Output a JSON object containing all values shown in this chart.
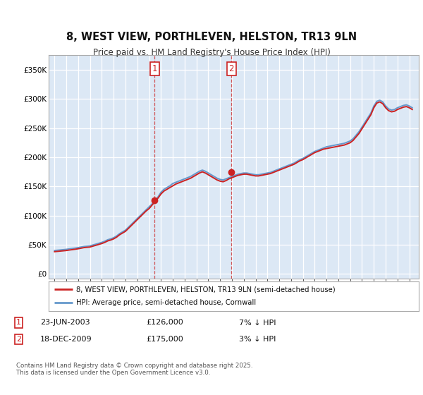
{
  "title": "8, WEST VIEW, PORTHLEVEN, HELSTON, TR13 9LN",
  "subtitle": "Price paid vs. HM Land Registry's House Price Index (HPI)",
  "background_color": "#ffffff",
  "plot_bg_color": "#dce8f5",
  "grid_color": "#ffffff",
  "hpi_color": "#6699cc",
  "price_color": "#cc2222",
  "marker1_date": 2003.47,
  "marker2_date": 2009.96,
  "marker1_price": 126000,
  "marker2_price": 175000,
  "marker1_label": "1",
  "marker2_label": "2",
  "marker1_date_str": "23-JUN-2003",
  "marker2_date_str": "18-DEC-2009",
  "marker1_pct": "7% ↓ HPI",
  "marker2_pct": "3% ↓ HPI",
  "legend1_label": "8, WEST VIEW, PORTHLEVEN, HELSTON, TR13 9LN (semi-detached house)",
  "legend2_label": "HPI: Average price, semi-detached house, Cornwall",
  "footnote": "Contains HM Land Registry data © Crown copyright and database right 2025.\nThis data is licensed under the Open Government Licence v3.0.",
  "yticks": [
    0,
    50000,
    100000,
    150000,
    200000,
    250000,
    300000,
    350000
  ],
  "ytick_labels": [
    "£0",
    "£50K",
    "£100K",
    "£150K",
    "£200K",
    "£250K",
    "£300K",
    "£350K"
  ],
  "xlim": [
    1994.5,
    2025.8
  ],
  "ylim": [
    -8000,
    375000
  ],
  "years_hpi": [
    1995,
    1995.25,
    1995.5,
    1995.75,
    1996,
    1996.25,
    1996.5,
    1996.75,
    1997,
    1997.25,
    1997.5,
    1997.75,
    1998,
    1998.25,
    1998.5,
    1998.75,
    1999,
    1999.25,
    1999.5,
    1999.75,
    2000,
    2000.25,
    2000.5,
    2000.75,
    2001,
    2001.25,
    2001.5,
    2001.75,
    2002,
    2002.25,
    2002.5,
    2002.75,
    2003,
    2003.25,
    2003.5,
    2003.75,
    2004,
    2004.25,
    2004.5,
    2004.75,
    2005,
    2005.25,
    2005.5,
    2005.75,
    2006,
    2006.25,
    2006.5,
    2006.75,
    2007,
    2007.25,
    2007.5,
    2007.75,
    2008,
    2008.25,
    2008.5,
    2008.75,
    2009,
    2009.25,
    2009.5,
    2009.75,
    2010,
    2010.25,
    2010.5,
    2010.75,
    2011,
    2011.25,
    2011.5,
    2011.75,
    2012,
    2012.25,
    2012.5,
    2012.75,
    2013,
    2013.25,
    2013.5,
    2013.75,
    2014,
    2014.25,
    2014.5,
    2014.75,
    2015,
    2015.25,
    2015.5,
    2015.75,
    2016,
    2016.25,
    2016.5,
    2016.75,
    2017,
    2017.25,
    2017.5,
    2017.75,
    2018,
    2018.25,
    2018.5,
    2018.75,
    2019,
    2019.25,
    2019.5,
    2019.75,
    2020,
    2020.25,
    2020.5,
    2020.75,
    2021,
    2021.25,
    2021.5,
    2021.75,
    2022,
    2022.25,
    2022.5,
    2022.75,
    2023,
    2023.25,
    2023.5,
    2023.75,
    2024,
    2024.25,
    2024.5,
    2024.75,
    2025,
    2025.25
  ],
  "hpi_values": [
    40000,
    40500,
    41000,
    41500,
    42000,
    42800,
    43500,
    44200,
    45000,
    46000,
    47000,
    47500,
    48000,
    49500,
    51000,
    52500,
    54000,
    56000,
    58500,
    60000,
    62000,
    65000,
    69000,
    72000,
    75000,
    80000,
    85000,
    90000,
    95000,
    100000,
    105000,
    110000,
    115000,
    120000,
    126000,
    132000,
    140000,
    145000,
    148000,
    151000,
    155000,
    157000,
    159000,
    161000,
    163000,
    165000,
    167000,
    170000,
    173000,
    176000,
    178000,
    176000,
    173000,
    170000,
    167000,
    164000,
    162000,
    161000,
    163000,
    165000,
    167000,
    169000,
    171000,
    172000,
    173000,
    173000,
    172000,
    171000,
    170000,
    170000,
    171000,
    172000,
    173000,
    174000,
    176000,
    178000,
    180000,
    182000,
    184000,
    186000,
    188000,
    190000,
    193000,
    196000,
    198000,
    201000,
    204000,
    207000,
    210000,
    212000,
    214000,
    216000,
    218000,
    219000,
    220000,
    221000,
    222000,
    223000,
    224000,
    226000,
    228000,
    232000,
    238000,
    244000,
    252000,
    260000,
    268000,
    276000,
    288000,
    296000,
    298000,
    295000,
    288000,
    283000,
    281000,
    282000,
    285000,
    287000,
    289000,
    290000,
    288000,
    285000
  ],
  "price_values": [
    38000,
    38500,
    39000,
    39500,
    40000,
    40800,
    41500,
    42200,
    43000,
    44000,
    45000,
    45500,
    46000,
    47500,
    49000,
    50500,
    52000,
    54000,
    56500,
    58000,
    60000,
    63000,
    67000,
    70000,
    73000,
    78000,
    83000,
    88000,
    93000,
    98000,
    103000,
    108000,
    112000,
    118000,
    124000,
    130000,
    137000,
    142000,
    145000,
    148000,
    151000,
    154000,
    156000,
    158000,
    160000,
    162000,
    164000,
    167000,
    170000,
    173000,
    175000,
    173000,
    170000,
    167000,
    164000,
    161000,
    159000,
    158000,
    160000,
    163000,
    165000,
    167000,
    169000,
    170000,
    171000,
    171000,
    170000,
    169000,
    168000,
    168000,
    169000,
    170000,
    171000,
    172000,
    174000,
    176000,
    178000,
    180000,
    182000,
    184000,
    186000,
    188000,
    191000,
    194000,
    196000,
    199000,
    202000,
    205000,
    208000,
    210000,
    212000,
    214000,
    215000,
    216000,
    217000,
    218000,
    219000,
    220000,
    221000,
    223000,
    225000,
    229000,
    235000,
    241000,
    249000,
    257000,
    265000,
    273000,
    285000,
    293000,
    295000,
    292000,
    285000,
    280000,
    278000,
    279000,
    282000,
    284000,
    286000,
    287000,
    285000,
    282000
  ]
}
